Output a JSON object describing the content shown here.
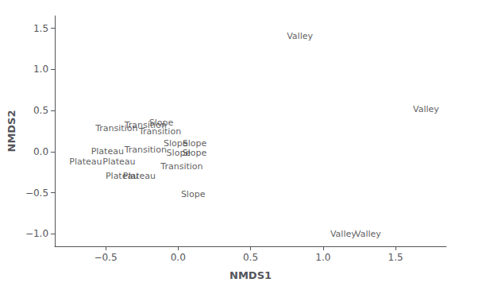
{
  "chart_data": {
    "type": "scatter",
    "xlabel": "NMDS1",
    "ylabel": "NMDS2",
    "x": [
      0.75,
      1.62,
      1.05,
      1.22,
      -0.2,
      -0.1,
      -0.08,
      0.03,
      0.03,
      0.02,
      -0.37,
      -0.57,
      -0.27,
      -0.37,
      -0.12,
      -0.6,
      -0.75,
      -0.52,
      -0.5,
      -0.38
    ],
    "values": [
      1.4,
      0.52,
      -1.0,
      -1.0,
      0.35,
      0.1,
      -0.02,
      0.1,
      -0.02,
      -0.52,
      0.32,
      0.28,
      0.25,
      0.02,
      -0.18,
      0.0,
      -0.12,
      -0.12,
      -0.3,
      -0.3
    ],
    "labels": [
      "Valley",
      "Valley",
      "Valley",
      "Valley",
      "Slope",
      "Slope",
      "Slope",
      "Slope",
      "Slope",
      "Slope",
      "Transition",
      "Transition",
      "Transition",
      "Transition",
      "Transition",
      "Plateau",
      "Plateau",
      "Plateau",
      "Plateau",
      "Plateau"
    ],
    "marker": "none",
    "color": "#333333",
    "xlim": [
      -0.85,
      1.85
    ],
    "xticks": [
      {
        "value": -0.5,
        "label": "−0.5"
      },
      {
        "value": 0.0,
        "label": "0.0"
      },
      0.5,
      {
        "value": 1.0,
        "label": "1.0"
      },
      1.5
    ],
    "ylim": [
      -1.15,
      1.65
    ],
    "yticks": [
      {
        "value": -1.0,
        "label": "−1.0"
      },
      {
        "value": -0.5,
        "label": "−0.5"
      },
      {
        "value": 0.0,
        "label": "0.0"
      },
      0.5,
      {
        "value": 1.0,
        "label": "1.0"
      },
      1.5
    ],
    "grid": false
  }
}
